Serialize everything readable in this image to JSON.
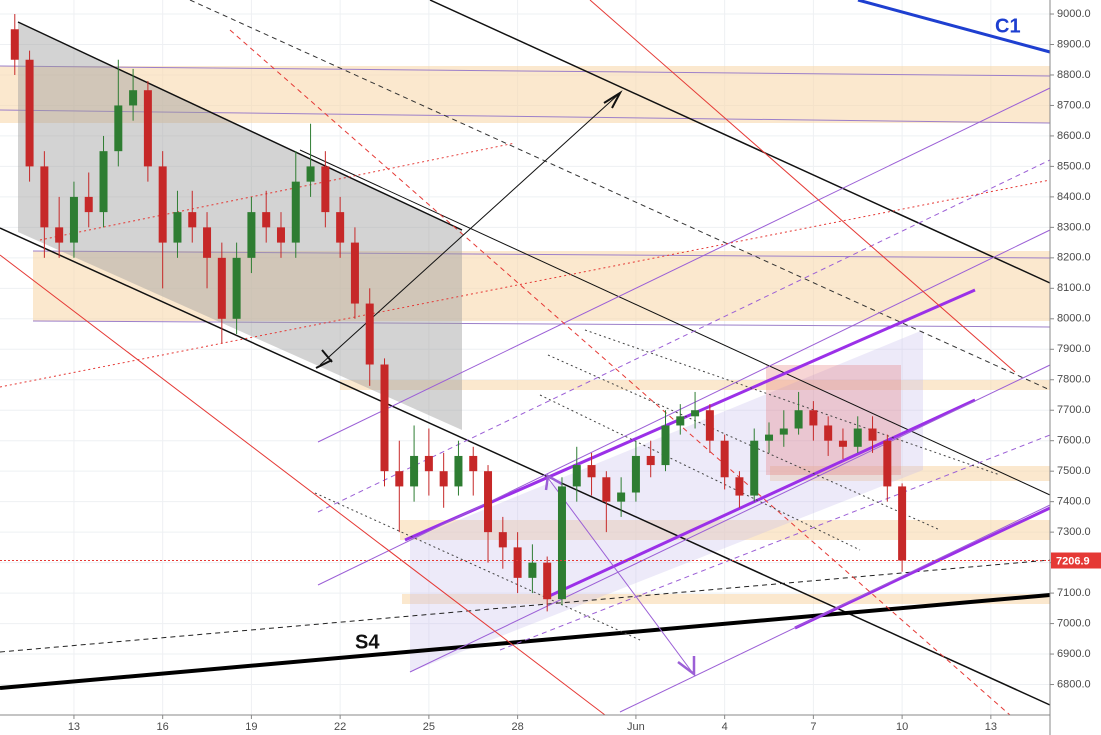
{
  "chart_data": {
    "type": "candlestick",
    "x": [
      11,
      11.5,
      12,
      12.5,
      13,
      13.5,
      14,
      14.5,
      15,
      15.5,
      16,
      16.5,
      17,
      17.5,
      18,
      18.5,
      19,
      19.5,
      20,
      20.5,
      21,
      21.5,
      22,
      22.5,
      23,
      23.5,
      24,
      24.5,
      25,
      25.5,
      26,
      26.5,
      27,
      27.5,
      28,
      28.5,
      29,
      29.5,
      30,
      30.5,
      31,
      31.5,
      32,
      32.5,
      33,
      33.5,
      34,
      34.5,
      35,
      35.5,
      36,
      36.5,
      37,
      37.5,
      38,
      38.5,
      39,
      39.5,
      40,
      40.5,
      41
    ],
    "open": [
      8950,
      8850,
      8500,
      8300,
      8250,
      8400,
      8350,
      8550,
      8700,
      8750,
      8500,
      8250,
      8350,
      8300,
      8200,
      8000,
      8200,
      8350,
      8300,
      8250,
      8450,
      8500,
      8350,
      8250,
      8050,
      7850,
      7500,
      7450,
      7550,
      7500,
      7450,
      7550,
      7500,
      7300,
      7250,
      7150,
      7200,
      7080,
      7450,
      7520,
      7480,
      7400,
      7430,
      7550,
      7520,
      7650,
      7680,
      7700,
      7600,
      7480,
      7420,
      7600,
      7620,
      7640,
      7700,
      7650,
      7600,
      7580,
      7640,
      7600,
      7450
    ],
    "high": [
      9000,
      8880,
      8550,
      8400,
      8450,
      8480,
      8600,
      8850,
      8820,
      8780,
      8550,
      8420,
      8420,
      8350,
      8250,
      8250,
      8400,
      8420,
      8350,
      8550,
      8640,
      8550,
      8400,
      8300,
      8100,
      7870,
      7600,
      7650,
      7640,
      7560,
      7600,
      7580,
      7520,
      7350,
      7300,
      7260,
      7220,
      7480,
      7580,
      7560,
      7500,
      7480,
      7600,
      7600,
      7700,
      7720,
      7760,
      7720,
      7620,
      7500,
      7640,
      7660,
      7700,
      7760,
      7730,
      7680,
      7640,
      7680,
      7680,
      7620,
      7460
    ],
    "low": [
      8800,
      8450,
      8200,
      8200,
      8200,
      8300,
      8300,
      8500,
      8650,
      8450,
      8100,
      8200,
      8250,
      8100,
      7920,
      7950,
      8150,
      8250,
      8200,
      8200,
      8400,
      8300,
      8200,
      8000,
      7780,
      7450,
      7300,
      7400,
      7420,
      7380,
      7420,
      7420,
      7200,
      7180,
      7100,
      7100,
      7040,
      7060,
      7400,
      7420,
      7300,
      7350,
      7400,
      7480,
      7500,
      7620,
      7640,
      7560,
      7440,
      7380,
      7400,
      7560,
      7580,
      7620,
      7600,
      7550,
      7540,
      7560,
      7560,
      7400,
      7170
    ],
    "close": [
      8850,
      8500,
      8300,
      8250,
      8400,
      8350,
      8550,
      8700,
      8750,
      8500,
      8250,
      8350,
      8300,
      8200,
      8000,
      8200,
      8350,
      8300,
      8250,
      8450,
      8500,
      8350,
      8250,
      8050,
      7850,
      7500,
      7450,
      7550,
      7500,
      7450,
      7550,
      7500,
      7300,
      7250,
      7150,
      7200,
      7080,
      7450,
      7520,
      7480,
      7400,
      7430,
      7550,
      7520,
      7650,
      7680,
      7700,
      7600,
      7480,
      7420,
      7600,
      7620,
      7640,
      7700,
      7650,
      7600,
      7580,
      7640,
      7600,
      7450,
      7206.9
    ],
    "up_color": "#2e7d32",
    "down_color": "#c62828",
    "xlim": [
      10.5,
      46
    ],
    "xticks": [
      13,
      16,
      19,
      22,
      25,
      28,
      {
        "value": 32,
        "label": "Jun"
      },
      {
        "value": 35,
        "label": "4"
      },
      {
        "value": 38,
        "label": "7"
      },
      {
        "value": 41,
        "label": "10"
      },
      {
        "value": 44,
        "label": "13"
      }
    ],
    "ylim": [
      6700,
      9046
    ],
    "yticks": [
      {
        "value": 6800,
        "label": "6800.0"
      },
      {
        "value": 6900,
        "label": "6900.0"
      },
      {
        "value": 7000,
        "label": "7000.0"
      },
      {
        "value": 7100,
        "label": "7100.0"
      },
      {
        "value": 7200,
        "label": "7200.0"
      },
      {
        "value": 7300,
        "label": "7300.0"
      },
      {
        "value": 7400,
        "label": "7400.0"
      },
      {
        "value": 7500,
        "label": "7500.0"
      },
      {
        "value": 7600,
        "label": "7600.0"
      },
      {
        "value": 7700,
        "label": "7700.0"
      },
      {
        "value": 7800,
        "label": "7800.0"
      },
      {
        "value": 7900,
        "label": "7900.0"
      },
      {
        "value": 8000,
        "label": "8000.0"
      },
      {
        "value": 8100,
        "label": "8100.0"
      },
      {
        "value": 8200,
        "label": "8200.0"
      },
      {
        "value": 8300,
        "label": "8300.0"
      },
      {
        "value": 8400,
        "label": "8400.0"
      },
      {
        "value": 8500,
        "label": "8500.0"
      },
      {
        "value": 8600,
        "label": "8600.0"
      },
      {
        "value": 8700,
        "label": "8700.0"
      },
      {
        "value": 8800,
        "label": "8800.0"
      },
      {
        "value": 8900,
        "label": "8900.0"
      },
      {
        "value": 9000,
        "label": "9000.0"
      }
    ],
    "grid": true,
    "last_price": 7206.9,
    "last_price_color": "#e53935",
    "annotations": [
      "C1",
      "S4"
    ]
  }
}
